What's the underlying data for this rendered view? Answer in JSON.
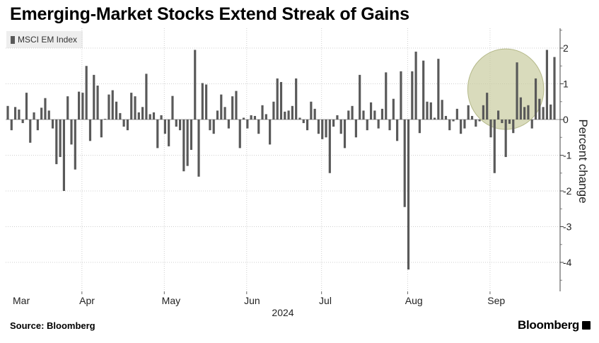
{
  "title": "Emerging-Market Stocks Extend Streak of Gains",
  "source": "Source: Bloomberg",
  "brand": "Bloomberg",
  "chart_data": {
    "type": "bar",
    "series_name": "MSCI EM Index",
    "ylabel": "Percent change",
    "ylim": [
      -4.8,
      2.6
    ],
    "yticks": [
      2,
      1,
      0,
      -1,
      -2,
      -3,
      -4
    ],
    "ytick_labels": [
      "2",
      "1",
      "0",
      "-1",
      "-2",
      "-3",
      "-4"
    ],
    "xlabel": "2024",
    "x_ticks": [
      {
        "label": "Mar",
        "index": 0
      },
      {
        "label": "Apr",
        "index": 21
      },
      {
        "label": "May",
        "index": 43
      },
      {
        "label": "Jun",
        "index": 65
      },
      {
        "label": "Jul",
        "index": 85
      },
      {
        "label": "Aug",
        "index": 108
      },
      {
        "label": "Sep",
        "index": 130
      }
    ],
    "highlight": {
      "from_index": 127,
      "to_index": 139,
      "color": "#c9cca0"
    },
    "bar_color": "#595959",
    "values": [
      0.38,
      -0.3,
      0.35,
      0.28,
      -0.1,
      0.75,
      -0.65,
      0.2,
      -0.3,
      0.33,
      0.6,
      0.25,
      -0.25,
      -1.25,
      -1.05,
      -2.0,
      0.65,
      -0.7,
      -1.4,
      0.78,
      0.75,
      1.5,
      -0.6,
      1.25,
      0.95,
      -0.5,
      0.02,
      0.7,
      0.82,
      0.5,
      0.18,
      -0.2,
      -0.3,
      0.75,
      0.65,
      0.2,
      0.35,
      1.28,
      0.15,
      0.2,
      -0.8,
      0.12,
      -0.4,
      -0.75,
      0.66,
      -0.2,
      -0.3,
      -1.45,
      -1.3,
      -0.85,
      1.95,
      -1.6,
      1.02,
      0.98,
      -0.3,
      -0.4,
      0.25,
      0.7,
      0.35,
      -0.25,
      0.65,
      0.8,
      -0.8,
      0.05,
      -0.25,
      0.12,
      0.1,
      -0.4,
      0.4,
      0.15,
      -0.7,
      0.5,
      1.15,
      1.05,
      0.22,
      0.25,
      0.38,
      1.15,
      0.05,
      -0.1,
      -0.3,
      0.5,
      0.3,
      -0.4,
      -0.55,
      -0.5,
      -1.5,
      -0.2,
      0.12,
      -0.4,
      -0.8,
      0.25,
      0.38,
      -0.5,
      1.25,
      0.25,
      -0.3,
      0.48,
      0.25,
      -0.25,
      0.3,
      1.32,
      -0.3,
      0.58,
      -0.6,
      1.35,
      -2.45,
      -4.2,
      1.35,
      1.9,
      -0.38,
      1.65,
      0.5,
      0.48,
      0.05,
      1.7,
      0.55,
      0.1,
      -0.3,
      -0.05,
      0.3,
      -0.4,
      -0.25,
      0.4,
      0.1,
      -0.2,
      -0.05,
      0.4,
      0.75,
      -0.5,
      -1.5,
      0.25,
      -0.1,
      -1.05,
      -0.12,
      -0.38,
      1.6,
      0.62,
      0.35,
      0.4,
      -0.25,
      1.15,
      0.58,
      0.35,
      1.95,
      0.42,
      1.75
    ]
  }
}
